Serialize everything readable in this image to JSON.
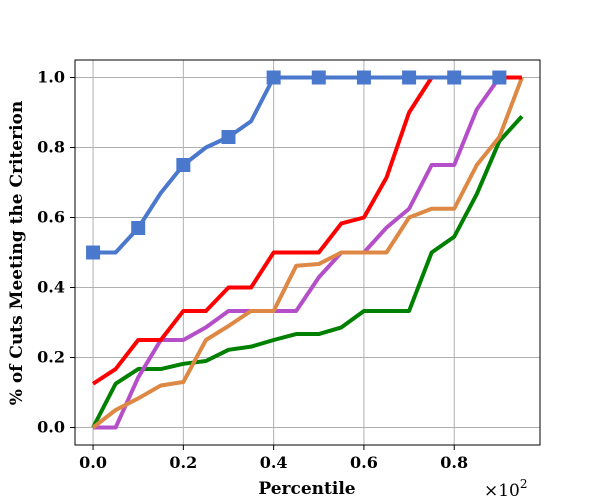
{
  "chart_data": {
    "type": "line",
    "title": "",
    "xlabel": "Percentile",
    "ylabel": "% of Cuts Meeting the Criterion",
    "x_scale_label": "×10",
    "x_scale_exp": "2",
    "xlim": [
      -0.04,
      0.99
    ],
    "ylim": [
      -0.05,
      1.05
    ],
    "xticks": [
      0.0,
      0.2,
      0.4,
      0.6,
      0.8
    ],
    "xtick_labels": [
      "0.0",
      "0.2",
      "0.4",
      "0.6",
      "0.8"
    ],
    "yticks": [
      0.0,
      0.2,
      0.4,
      0.6,
      0.8,
      1.0
    ],
    "ytick_labels": [
      "0.0",
      "0.2",
      "0.4",
      "0.6",
      "0.8",
      "1.0"
    ],
    "grid": true,
    "x": [
      0.0,
      0.05,
      0.1,
      0.15,
      0.2,
      0.25,
      0.3,
      0.35,
      0.4,
      0.45,
      0.5,
      0.55,
      0.6,
      0.65,
      0.7,
      0.75,
      0.8,
      0.85,
      0.9,
      0.95
    ],
    "series": [
      {
        "name": "blue",
        "color": "#4a78cd",
        "marker": "square",
        "x": [
          0.0,
          0.05,
          0.1,
          0.15,
          0.2,
          0.25,
          0.3,
          0.35,
          0.4,
          0.45,
          0.5,
          0.55,
          0.6,
          0.65,
          0.7,
          0.75,
          0.8,
          0.85,
          0.9
        ],
        "values": [
          0.5,
          0.5,
          0.57,
          0.67,
          0.75,
          0.8,
          0.83,
          0.875,
          1.0,
          1.0,
          1.0,
          1.0,
          1.0,
          1.0,
          1.0,
          1.0,
          1.0,
          1.0,
          1.0
        ],
        "marker_x": [
          0.0,
          0.1,
          0.2,
          0.3,
          0.4,
          0.5,
          0.6,
          0.7,
          0.8,
          0.9
        ]
      },
      {
        "name": "red",
        "color": "#ff0000",
        "marker": "none",
        "x": [
          0.0,
          0.05,
          0.1,
          0.15,
          0.2,
          0.25,
          0.3,
          0.35,
          0.4,
          0.45,
          0.5,
          0.55,
          0.6,
          0.65,
          0.7,
          0.75,
          0.8,
          0.85,
          0.9,
          0.95
        ],
        "values": [
          0.125,
          0.167,
          0.25,
          0.25,
          0.333,
          0.333,
          0.4,
          0.4,
          0.5,
          0.5,
          0.5,
          0.583,
          0.6,
          0.714,
          0.9,
          1.0,
          1.0,
          1.0,
          1.0,
          1.0
        ]
      },
      {
        "name": "orange",
        "color": "#dd8844",
        "marker": "none",
        "x": [
          0.0,
          0.05,
          0.1,
          0.15,
          0.2,
          0.25,
          0.3,
          0.35,
          0.4,
          0.45,
          0.5,
          0.55,
          0.6,
          0.65,
          0.7,
          0.75,
          0.8,
          0.85,
          0.9,
          0.95
        ],
        "values": [
          0.0,
          0.05,
          0.083,
          0.12,
          0.13,
          0.25,
          0.29,
          0.333,
          0.333,
          0.462,
          0.467,
          0.5,
          0.5,
          0.5,
          0.6,
          0.625,
          0.625,
          0.75,
          0.83,
          1.0
        ]
      },
      {
        "name": "purple",
        "color": "#b44fc9",
        "marker": "none",
        "x": [
          0.0,
          0.05,
          0.1,
          0.15,
          0.2,
          0.25,
          0.3,
          0.35,
          0.4,
          0.45,
          0.5,
          0.55,
          0.6,
          0.65,
          0.7,
          0.75,
          0.8,
          0.85,
          0.9
        ],
        "values": [
          0.0,
          0.0,
          0.143,
          0.25,
          0.25,
          0.286,
          0.333,
          0.333,
          0.333,
          0.333,
          0.429,
          0.5,
          0.5,
          0.571,
          0.625,
          0.75,
          0.75,
          0.909,
          1.0
        ]
      },
      {
        "name": "green",
        "color": "#008000",
        "marker": "none",
        "x": [
          0.0,
          0.05,
          0.1,
          0.15,
          0.2,
          0.25,
          0.3,
          0.35,
          0.4,
          0.45,
          0.5,
          0.55,
          0.6,
          0.65,
          0.7,
          0.75,
          0.8,
          0.85,
          0.9,
          0.95
        ],
        "values": [
          0.0,
          0.125,
          0.167,
          0.167,
          0.182,
          0.19,
          0.222,
          0.231,
          0.25,
          0.267,
          0.267,
          0.286,
          0.333,
          0.333,
          0.333,
          0.5,
          0.545,
          0.667,
          0.818,
          0.889
        ]
      }
    ]
  }
}
